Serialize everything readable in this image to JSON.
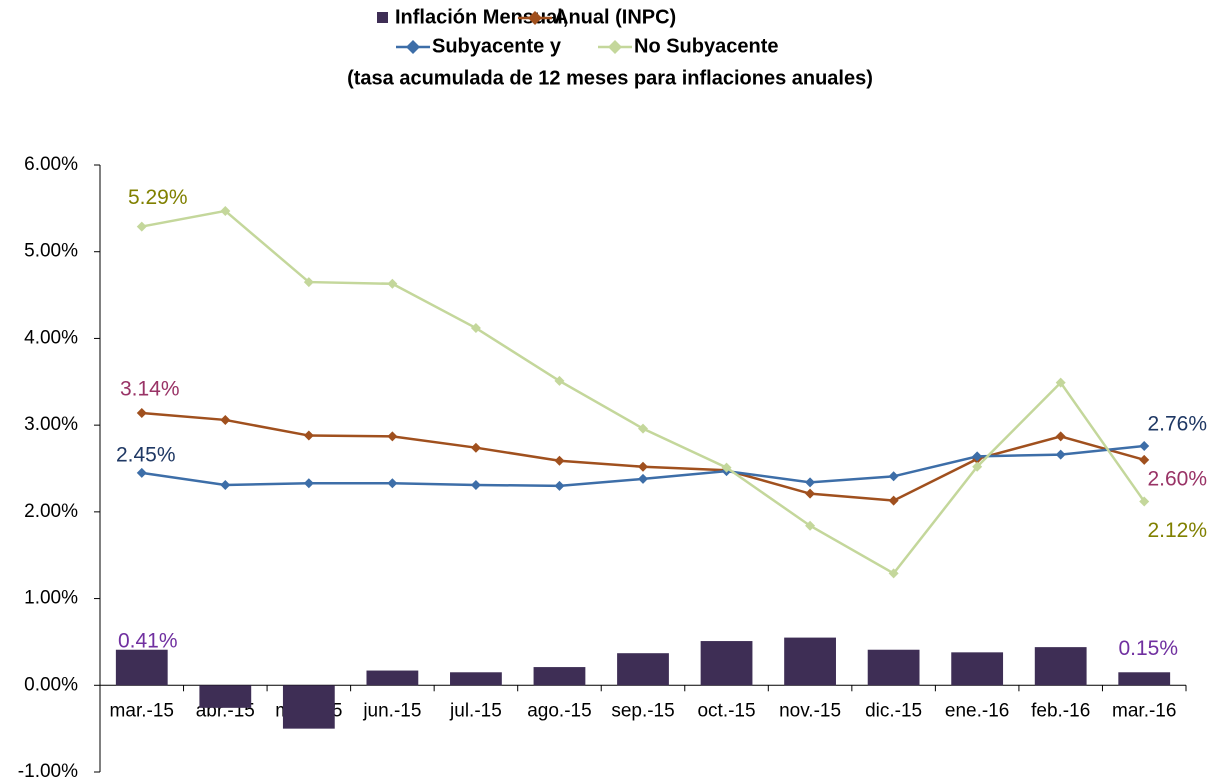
{
  "chart_data": {
    "type": "combo",
    "title": "(tasa acumulada de 12 meses para inflaciones anuales)",
    "categories": [
      "mar.-15",
      "abr.-15",
      "may.-15",
      "jun.-15",
      "jul.-15",
      "ago.-15",
      "sep.-15",
      "oct.-15",
      "nov.-15",
      "dic.-15",
      "ene.-16",
      "feb.-16",
      "mar.-16"
    ],
    "series": [
      {
        "name": "Inflación Mensual,",
        "type": "bar",
        "color": "#3e2e55",
        "label_color": "#7030a0",
        "values": [
          0.41,
          -0.26,
          -0.5,
          0.17,
          0.15,
          0.21,
          0.37,
          0.51,
          0.55,
          0.41,
          0.38,
          0.44,
          0.15
        ],
        "value_labels": [
          "0.41%",
          null,
          null,
          null,
          null,
          null,
          null,
          null,
          null,
          null,
          null,
          null,
          "0.15%"
        ]
      },
      {
        "name": "Anual (INPC)",
        "type": "line",
        "color": "#a0501e",
        "label_color": "#993366",
        "values": [
          3.14,
          3.06,
          2.88,
          2.87,
          2.74,
          2.59,
          2.52,
          2.48,
          2.21,
          2.13,
          2.61,
          2.87,
          2.6
        ],
        "value_labels": [
          "3.14%",
          null,
          null,
          null,
          null,
          null,
          null,
          null,
          null,
          null,
          null,
          null,
          "2.60%"
        ]
      },
      {
        "name": "Subyacente y",
        "type": "line",
        "color": "#3d6ea8",
        "label_color": "#1f3864",
        "values": [
          2.45,
          2.31,
          2.33,
          2.33,
          2.31,
          2.3,
          2.38,
          2.47,
          2.34,
          2.41,
          2.64,
          2.66,
          2.76
        ],
        "value_labels": [
          "2.45%",
          null,
          null,
          null,
          null,
          null,
          null,
          null,
          null,
          null,
          null,
          null,
          "2.76%"
        ]
      },
      {
        "name": "No Subyacente",
        "type": "line",
        "color": "#c4d79b",
        "label_color": "#808000",
        "values": [
          5.29,
          5.47,
          4.65,
          4.63,
          4.12,
          3.51,
          2.96,
          2.51,
          1.84,
          1.29,
          2.52,
          3.49,
          2.12
        ],
        "value_labels": [
          "5.29%",
          null,
          null,
          null,
          null,
          null,
          null,
          null,
          null,
          null,
          null,
          null,
          "2.12%"
        ]
      }
    ],
    "ylim": [
      -1,
      6
    ],
    "yticks": [
      {
        "value": -1,
        "label": "-1.00%"
      },
      {
        "value": 0,
        "label": "0.00%"
      },
      {
        "value": 1,
        "label": "1.00%"
      },
      {
        "value": 2,
        "label": "2.00%"
      },
      {
        "value": 3,
        "label": "3.00%"
      },
      {
        "value": 4,
        "label": "4.00%"
      },
      {
        "value": 5,
        "label": "5.00%"
      },
      {
        "value": 6,
        "label": "6.00%"
      }
    ],
    "grid": false
  }
}
